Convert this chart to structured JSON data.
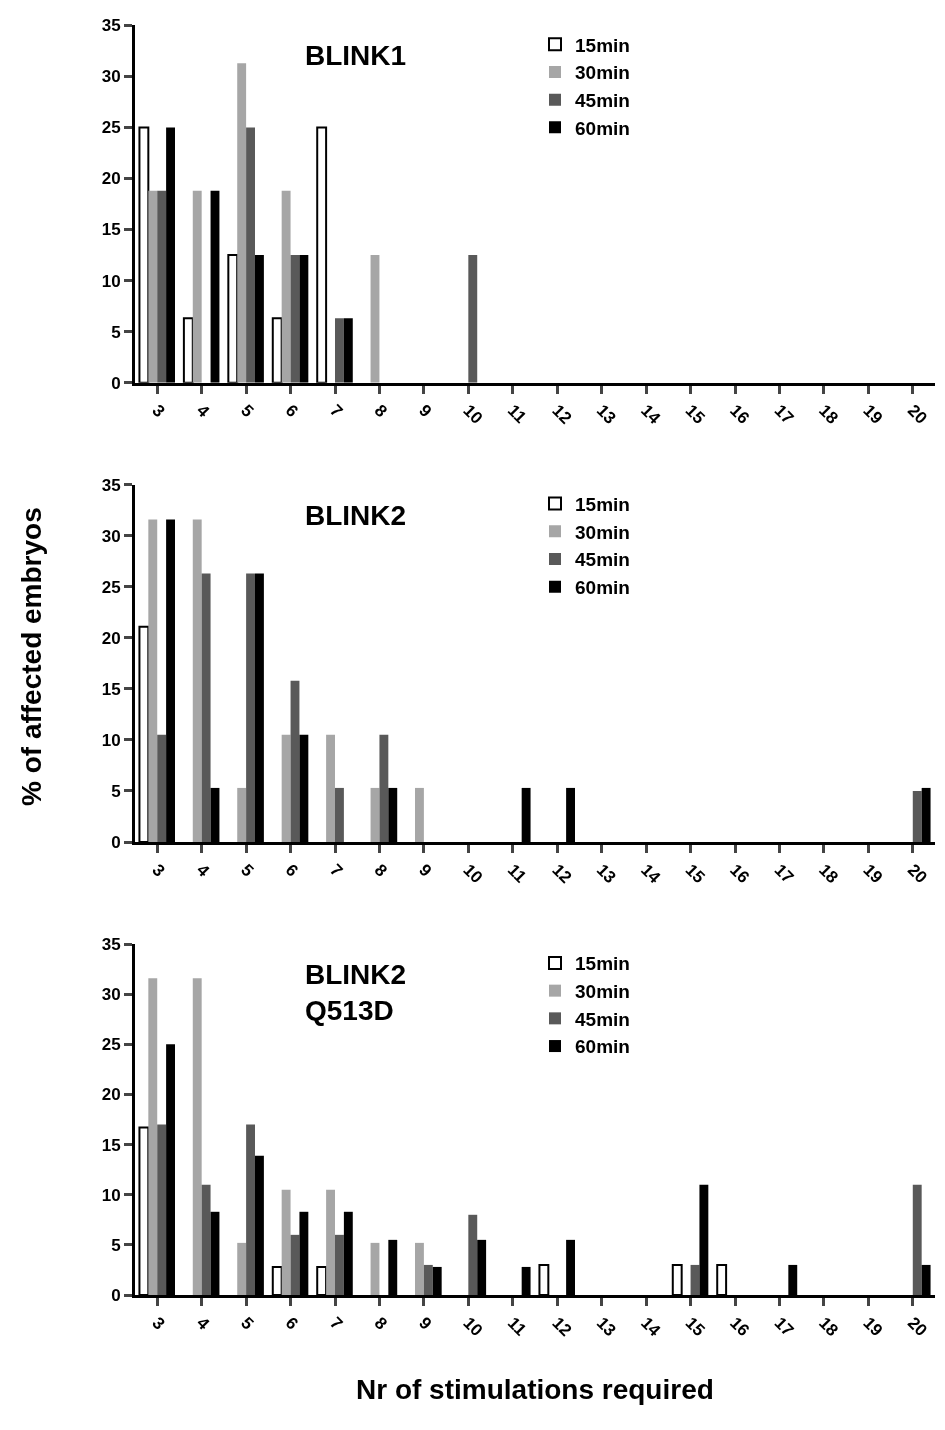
{
  "chart_data": [
    {
      "type": "bar",
      "title": "BLINK1",
      "categories": [
        "3",
        "4",
        "5",
        "6",
        "7",
        "8",
        "9",
        "10",
        "11",
        "12",
        "13",
        "14",
        "15",
        "16",
        "17",
        "18",
        "19",
        "20"
      ],
      "ylim": [
        0,
        35
      ],
      "yticks": [
        0,
        5,
        10,
        15,
        20,
        25,
        30,
        35
      ],
      "legend": "top",
      "series": [
        {
          "name": "15min",
          "color": "#ffffff",
          "values": [
            25,
            6.3,
            12.5,
            6.3,
            25,
            0,
            0,
            0,
            0,
            0,
            0,
            0,
            0,
            0,
            0,
            0,
            0,
            0
          ]
        },
        {
          "name": "30min",
          "color": "#a6a6a6",
          "values": [
            18.8,
            18.8,
            31.3,
            18.8,
            0,
            12.5,
            0,
            0,
            0,
            0,
            0,
            0,
            0,
            0,
            0,
            0,
            0,
            0
          ]
        },
        {
          "name": "45min",
          "color": "#595959",
          "values": [
            18.8,
            0,
            25,
            12.5,
            6.3,
            0,
            0,
            12.5,
            0,
            0,
            0,
            0,
            0,
            0,
            0,
            0,
            0,
            0
          ]
        },
        {
          "name": "60min",
          "color": "#000000",
          "values": [
            25,
            18.8,
            12.5,
            12.5,
            6.3,
            0,
            0,
            0,
            0,
            0,
            0,
            0,
            0,
            0,
            0,
            0,
            0,
            0
          ]
        }
      ]
    },
    {
      "type": "bar",
      "title": "BLINK2",
      "ylabel": "% of affected embryos",
      "categories": [
        "3",
        "4",
        "5",
        "6",
        "7",
        "8",
        "9",
        "10",
        "11",
        "12",
        "13",
        "14",
        "15",
        "16",
        "17",
        "18",
        "19",
        "20"
      ],
      "ylim": [
        0,
        35
      ],
      "yticks": [
        0,
        5,
        10,
        15,
        20,
        25,
        30,
        35
      ],
      "legend": "top",
      "series": [
        {
          "name": "15min",
          "color": "#ffffff",
          "values": [
            21.1,
            0,
            0,
            0,
            0,
            0,
            0,
            0,
            0,
            0,
            0,
            0,
            0,
            0,
            0,
            0,
            0,
            0
          ]
        },
        {
          "name": "30min",
          "color": "#a6a6a6",
          "values": [
            31.6,
            31.6,
            5.3,
            10.5,
            10.5,
            5.3,
            5.3,
            0,
            0,
            0,
            0,
            0,
            0,
            0,
            0,
            0,
            0,
            0
          ]
        },
        {
          "name": "45min",
          "color": "#595959",
          "values": [
            10.5,
            26.3,
            26.3,
            15.8,
            5.3,
            10.5,
            0,
            0,
            0,
            0,
            0,
            0,
            0,
            0,
            0,
            0,
            0,
            5
          ]
        },
        {
          "name": "60min",
          "color": "#000000",
          "values": [
            31.6,
            5.3,
            26.3,
            10.5,
            0,
            5.3,
            0,
            0,
            5.3,
            5.3,
            0,
            0,
            0,
            0,
            0,
            0,
            0,
            5.3
          ]
        }
      ]
    },
    {
      "type": "bar",
      "title": "BLINK2\nQ513D",
      "xlabel": "Nr of stimulations required",
      "categories": [
        "3",
        "4",
        "5",
        "6",
        "7",
        "8",
        "9",
        "10",
        "11",
        "12",
        "13",
        "14",
        "15",
        "16",
        "17",
        "18",
        "19",
        "20"
      ],
      "ylim": [
        0,
        35
      ],
      "yticks": [
        0,
        5,
        10,
        15,
        20,
        25,
        30,
        35
      ],
      "legend": "top",
      "series": [
        {
          "name": "15min",
          "color": "#ffffff",
          "values": [
            16.7,
            0,
            0,
            2.8,
            2.8,
            0,
            0,
            0,
            0,
            3,
            0,
            0,
            3,
            3,
            0,
            0,
            0,
            0
          ]
        },
        {
          "name": "30min",
          "color": "#a6a6a6",
          "values": [
            31.6,
            31.6,
            5.2,
            10.5,
            10.5,
            5.2,
            5.2,
            0,
            0,
            0,
            0,
            0,
            0,
            0,
            0,
            0,
            0,
            0
          ]
        },
        {
          "name": "45min",
          "color": "#595959",
          "values": [
            17,
            11,
            17,
            6,
            6,
            0,
            3,
            8,
            0,
            0,
            0,
            0,
            3,
            0,
            0,
            0,
            0,
            11
          ]
        },
        {
          "name": "60min",
          "color": "#000000",
          "values": [
            25,
            8.3,
            13.9,
            8.3,
            8.3,
            5.5,
            2.8,
            5.5,
            2.8,
            5.5,
            0,
            0,
            11,
            0,
            3,
            0,
            0,
            3
          ]
        }
      ]
    }
  ]
}
